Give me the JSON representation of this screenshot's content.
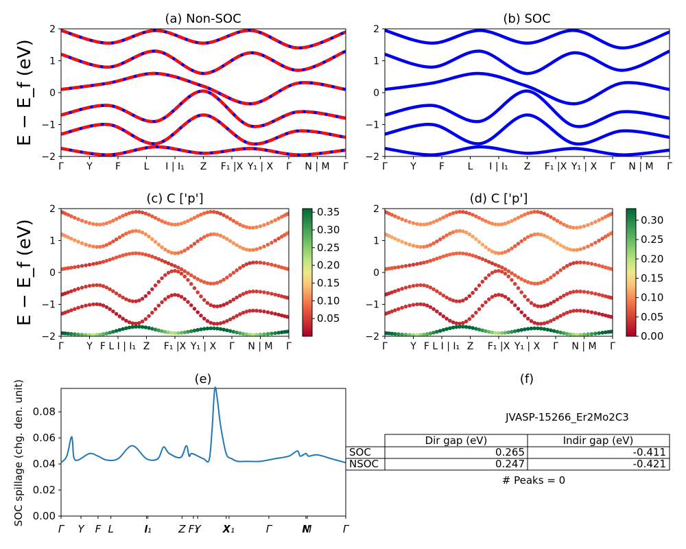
{
  "chart_data": [
    {
      "id": "a",
      "type": "line",
      "title": "(a) Non-SOC",
      "ylabel": "E − E_f (eV)",
      "ylim": [
        -2,
        2
      ],
      "y_ticks": [
        "−2",
        "−1",
        "0",
        "1",
        "2"
      ],
      "x_ticks": [
        "Γ",
        "Y",
        "F",
        "L",
        "I | I₁",
        "Z",
        "F₁ |X",
        "Y₁ | X",
        "Γ",
        "N | M",
        "Γ"
      ],
      "series": [
        {
          "style": "red-dashed-over-blue",
          "values": [
            1.95,
            1.55,
            1.95,
            1.55,
            1.95,
            1.4,
            1.9
          ]
        },
        {
          "style": "red-dashed-over-blue",
          "values": [
            1.2,
            0.8,
            1.3,
            0.6,
            1.25,
            0.7,
            1.3
          ]
        },
        {
          "style": "red-dashed-over-blue",
          "values": [
            0.1,
            0.3,
            0.6,
            0.2,
            -0.35,
            0.3,
            0.1
          ]
        },
        {
          "style": "red-dashed-over-blue",
          "values": [
            -0.7,
            -0.4,
            -0.9,
            0.05,
            -1.05,
            -0.6,
            -0.8
          ]
        },
        {
          "style": "red-dashed-over-blue",
          "values": [
            -1.3,
            -1.0,
            -1.6,
            -0.7,
            -1.6,
            -1.2,
            -1.4
          ]
        },
        {
          "style": "red-dashed-over-blue",
          "values": [
            -1.75,
            -1.95,
            -1.7,
            -1.9,
            -1.75,
            -1.95,
            -1.8
          ]
        }
      ]
    },
    {
      "id": "b",
      "type": "line",
      "title": "(b) SOC",
      "ylim": [
        -2,
        2
      ],
      "y_ticks": [
        "−2",
        "−1",
        "0",
        "1",
        "2"
      ],
      "x_ticks": [
        "Γ",
        "Y",
        "F",
        "L",
        "I | I₁",
        "Z",
        "F₁ |X",
        "Y₁ | X",
        "Γ",
        "N | M",
        "Γ"
      ],
      "series": [
        {
          "style": "blue",
          "values": [
            1.95,
            1.55,
            1.95,
            1.55,
            1.95,
            1.4,
            1.9
          ]
        },
        {
          "style": "blue",
          "values": [
            1.2,
            0.8,
            1.3,
            0.6,
            1.25,
            0.7,
            1.3
          ]
        },
        {
          "style": "blue",
          "values": [
            0.1,
            0.3,
            0.6,
            0.2,
            -0.35,
            0.3,
            0.1
          ]
        },
        {
          "style": "blue",
          "values": [
            -0.7,
            -0.4,
            -0.9,
            0.05,
            -1.05,
            -0.6,
            -0.8
          ]
        },
        {
          "style": "blue",
          "values": [
            -1.3,
            -1.0,
            -1.6,
            -0.7,
            -1.6,
            -1.2,
            -1.4
          ]
        },
        {
          "style": "blue",
          "values": [
            -1.75,
            -1.95,
            -1.7,
            -1.9,
            -1.75,
            -1.95,
            -1.8
          ]
        }
      ]
    },
    {
      "id": "c",
      "type": "scatter",
      "title": "(c)  C ['p']",
      "ylabel": "E − E_f (eV)",
      "ylim": [
        -2,
        2
      ],
      "y_ticks": [
        "−2",
        "−1",
        "0",
        "1",
        "2"
      ],
      "x_ticks": [
        "Γ",
        "Y",
        "F L I | I₁",
        "Z",
        "F₁ |X",
        "Y₁ | X",
        "Γ",
        "N | M",
        "Γ"
      ],
      "colorbar_ticks": [
        "0.05",
        "0.10",
        "0.15",
        "0.20",
        "0.25",
        "0.30",
        "0.35"
      ],
      "colorbar_range": [
        0.0,
        0.36
      ],
      "bands": [
        {
          "values": [
            1.9,
            1.5,
            1.9,
            1.5,
            1.9,
            1.4,
            1.85
          ],
          "weight": 0.08
        },
        {
          "values": [
            1.2,
            0.8,
            1.3,
            0.6,
            1.2,
            0.7,
            1.25
          ],
          "weight": 0.09
        },
        {
          "values": [
            0.1,
            0.3,
            0.6,
            0.2,
            -0.35,
            0.3,
            0.1
          ],
          "weight": 0.06
        },
        {
          "values": [
            -0.7,
            -0.4,
            -0.9,
            0.05,
            -1.05,
            -0.6,
            -0.8
          ],
          "weight": 0.04
        },
        {
          "values": [
            -1.3,
            -1.0,
            -1.6,
            -0.7,
            -1.6,
            -1.2,
            -1.4
          ],
          "weight": 0.03
        },
        {
          "values": [
            -1.9,
            -1.95,
            -1.7,
            -1.9,
            -1.75,
            -1.95,
            -1.85
          ],
          "weight": 0.3
        }
      ]
    },
    {
      "id": "d",
      "type": "scatter",
      "title": "(d) C ['p']",
      "ylim": [
        -2,
        2
      ],
      "y_ticks": [
        "−2",
        "−1",
        "0",
        "1",
        "2"
      ],
      "x_ticks": [
        "Γ",
        "Y",
        "F L I | I₁",
        "Z",
        "F₁ |X",
        "Y₁ | X",
        "Γ",
        "N | M",
        "Γ"
      ],
      "colorbar_ticks": [
        "0.00",
        "0.05",
        "0.10",
        "0.15",
        "0.20",
        "0.25",
        "0.30"
      ],
      "colorbar_range": [
        0.0,
        0.33
      ],
      "bands": [
        {
          "values": [
            1.9,
            1.5,
            1.9,
            1.5,
            1.9,
            1.4,
            1.85
          ],
          "weight": 0.08
        },
        {
          "values": [
            1.2,
            0.8,
            1.3,
            0.6,
            1.2,
            0.7,
            1.25
          ],
          "weight": 0.09
        },
        {
          "values": [
            0.1,
            0.3,
            0.6,
            0.2,
            -0.35,
            0.3,
            0.1
          ],
          "weight": 0.06
        },
        {
          "values": [
            -0.7,
            -0.4,
            -0.9,
            0.05,
            -1.05,
            -0.6,
            -0.8
          ],
          "weight": 0.04
        },
        {
          "values": [
            -1.3,
            -1.0,
            -1.6,
            -0.7,
            -1.6,
            -1.2,
            -1.4
          ],
          "weight": 0.03
        },
        {
          "values": [
            -1.9,
            -1.95,
            -1.7,
            -1.9,
            -1.75,
            -1.95,
            -1.85
          ],
          "weight": 0.28
        }
      ]
    },
    {
      "id": "e",
      "type": "line",
      "title": "(e)",
      "ylabel": "SOC spillage (chg. den. unit)",
      "ylim": [
        0.0,
        0.098
      ],
      "y_ticks": [
        "0.00",
        "0.02",
        "0.04",
        "0.06",
        "0.08"
      ],
      "x_ticks": [
        "Γ",
        "Y",
        "F",
        "L",
        "I",
        "I₁",
        "Z",
        "F₁",
        "Y",
        "X",
        "X₁",
        "Γ",
        "N",
        "M",
        "Γ"
      ],
      "x": [
        0,
        0.02,
        0.035,
        0.04,
        0.045,
        0.06,
        0.1,
        0.13,
        0.16,
        0.2,
        0.25,
        0.3,
        0.34,
        0.36,
        0.38,
        0.42,
        0.44,
        0.45,
        0.46,
        0.5,
        0.52,
        0.53,
        0.54,
        0.55,
        0.56,
        0.58,
        0.6,
        0.62,
        0.65,
        0.7,
        0.75,
        0.8,
        0.83,
        0.84,
        0.86,
        0.87,
        0.9,
        0.95,
        1.0
      ],
      "values": [
        0.041,
        0.046,
        0.06,
        0.058,
        0.045,
        0.043,
        0.048,
        0.046,
        0.043,
        0.044,
        0.054,
        0.044,
        0.044,
        0.053,
        0.048,
        0.045,
        0.054,
        0.046,
        0.048,
        0.044,
        0.043,
        0.065,
        0.098,
        0.088,
        0.07,
        0.048,
        0.044,
        0.042,
        0.042,
        0.042,
        0.044,
        0.046,
        0.05,
        0.046,
        0.048,
        0.046,
        0.047,
        0.044,
        0.041
      ]
    }
  ],
  "panel_f": {
    "title": "(f)",
    "material": "JVASP-15266_Er2Mo2C3",
    "table": {
      "headers": [
        "",
        "Dir gap (eV)",
        "Indir gap (eV)"
      ],
      "rows": [
        [
          "SOC",
          "0.265",
          "-0.411"
        ],
        [
          "NSOC",
          "0.247",
          "-0.421"
        ]
      ]
    },
    "peaks": "# Peaks = 0"
  }
}
